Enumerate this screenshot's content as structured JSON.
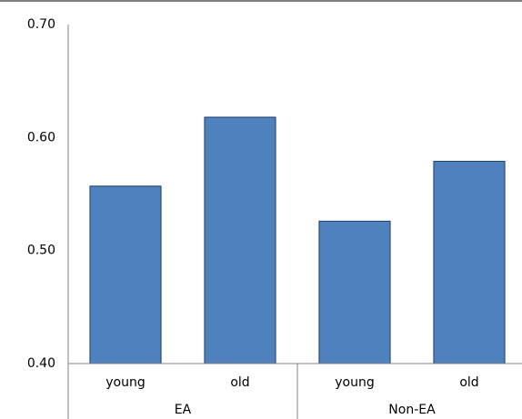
{
  "chart_data": {
    "type": "bar",
    "categories": [
      "young",
      "old",
      "young",
      "old"
    ],
    "groups": [
      "EA",
      "Non-EA"
    ],
    "values": [
      0.557,
      0.618,
      0.526,
      0.579
    ],
    "color": "#4f81bd",
    "ylim": [
      0.4,
      0.7
    ],
    "yticks": [
      {
        "value": 0.4,
        "label": "0.40"
      },
      {
        "value": 0.5,
        "label": "0.50"
      },
      {
        "value": 0.6,
        "label": "0.60"
      },
      {
        "value": 0.7,
        "label": "0.70"
      }
    ],
    "grid": false
  }
}
